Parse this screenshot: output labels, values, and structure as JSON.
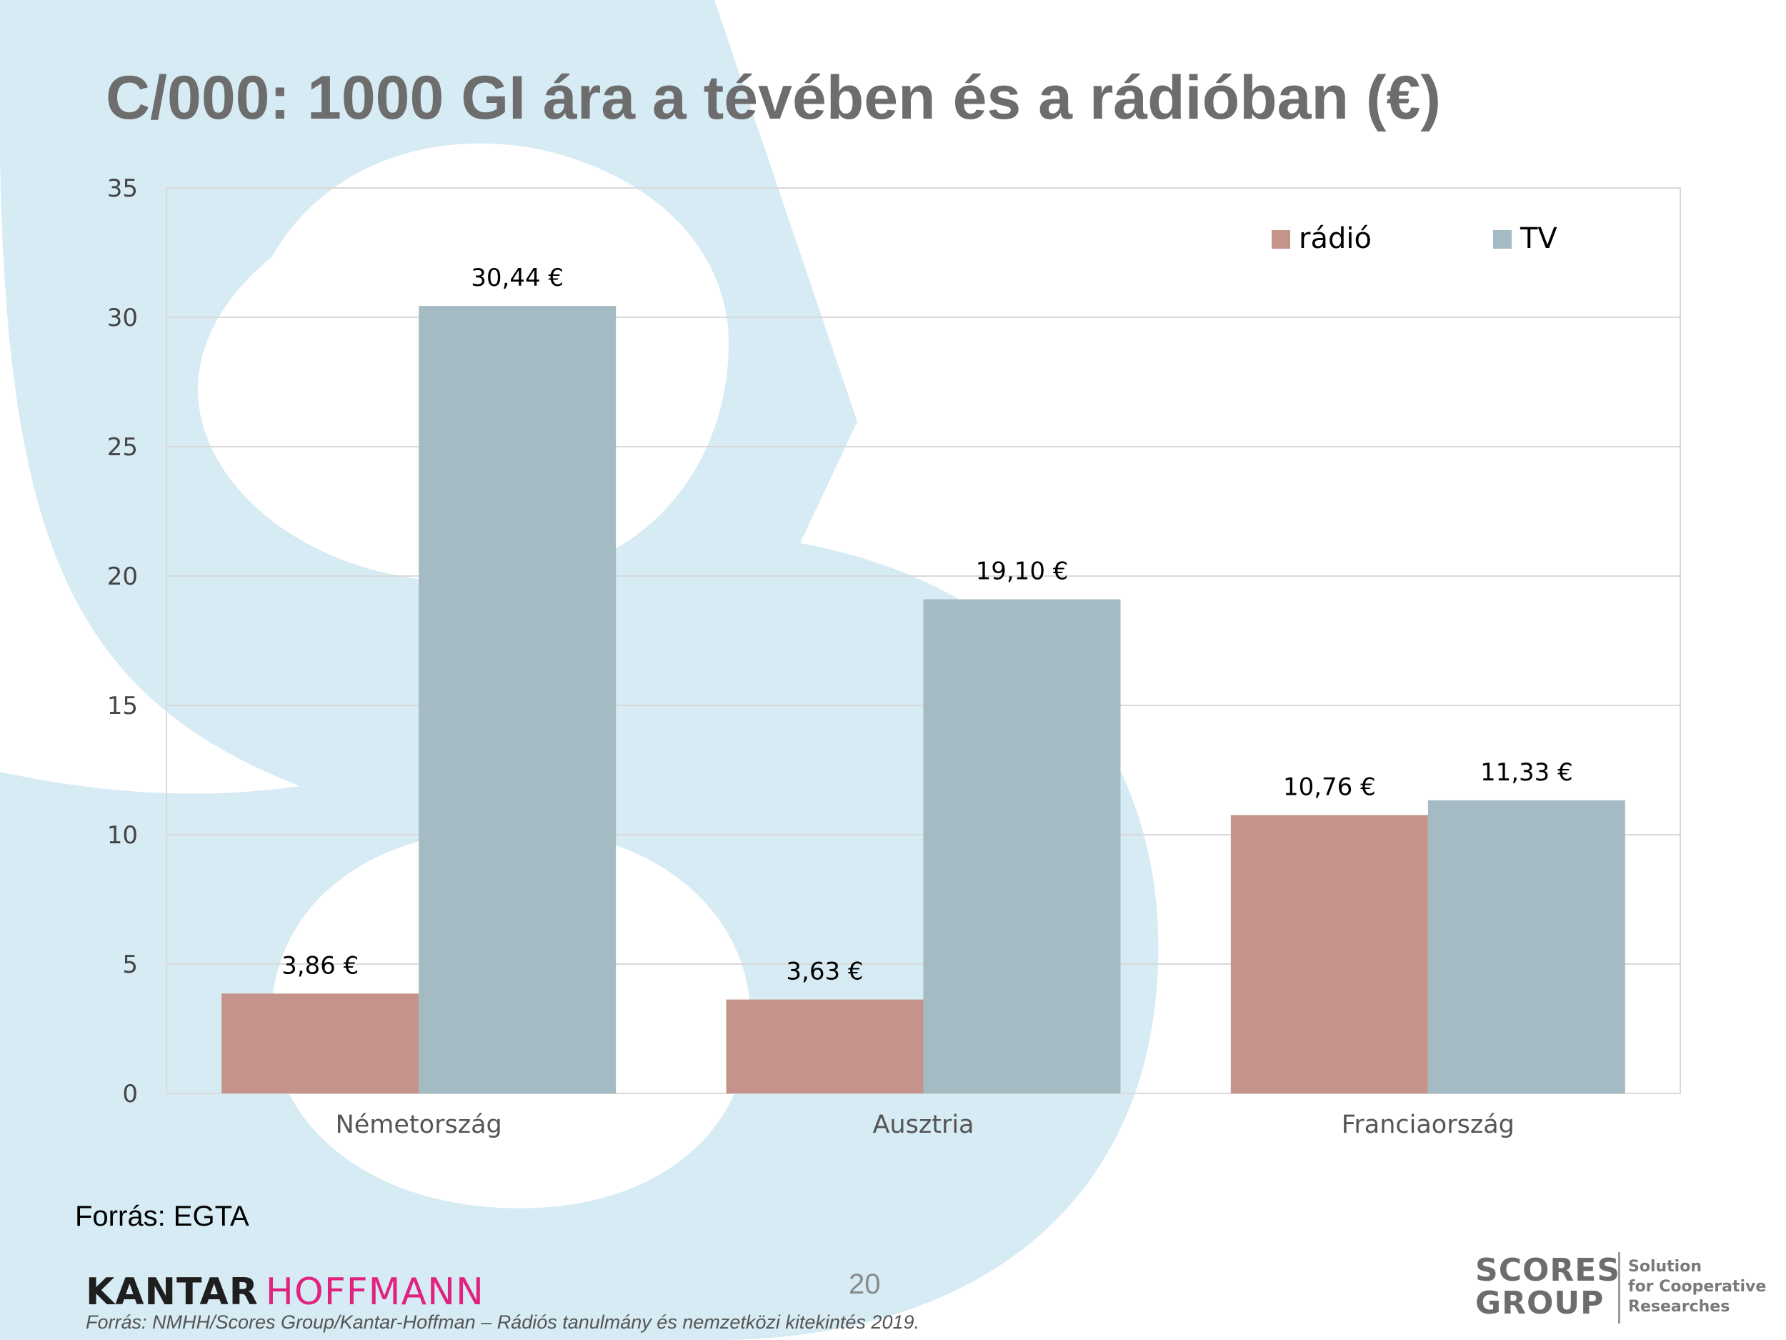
{
  "title": "C/000: 1000 GI ára a tévében és a rádióban (€)",
  "source_label": "Forrás: EGTA",
  "page_number": "20",
  "footer": {
    "brand_part1": "KANTAR",
    "brand_part2": "HOFFMANN",
    "source_note": "Forrás: NMHH/Scores Group/Kantar-Hoffman – Rádiós tanulmány és nemzetközi kitekintés 2019.",
    "partner_logo_line1": "SCORES",
    "partner_logo_line2": "GROUP",
    "partner_tagline": [
      "Solution",
      "for Cooperative",
      "Researches"
    ]
  },
  "colors": {
    "radio": "#c4948a",
    "tv": "#a4bbc4",
    "decoration": "#d6ebf4",
    "grid": "#d9d9d9",
    "title": "#6d6d6d",
    "brand_pink": "#e0237f"
  },
  "chart_data": {
    "type": "bar",
    "categories": [
      "Németország",
      "Ausztria",
      "Franciaország"
    ],
    "series": [
      {
        "name": "rádió",
        "values": [
          3.86,
          3.63,
          10.76
        ],
        "labels": [
          "3,86 €",
          "3,63 €",
          "10,76 €"
        ]
      },
      {
        "name": "TV",
        "values": [
          30.44,
          19.1,
          11.33
        ],
        "labels": [
          "30,44 €",
          "19,10 €",
          "11,33 €"
        ]
      }
    ],
    "y_ticks": [
      "0",
      "5",
      "10",
      "15",
      "20",
      "25",
      "30",
      "35"
    ],
    "ylim": [
      0,
      35
    ],
    "grid": true,
    "legend_position": "top-right"
  }
}
